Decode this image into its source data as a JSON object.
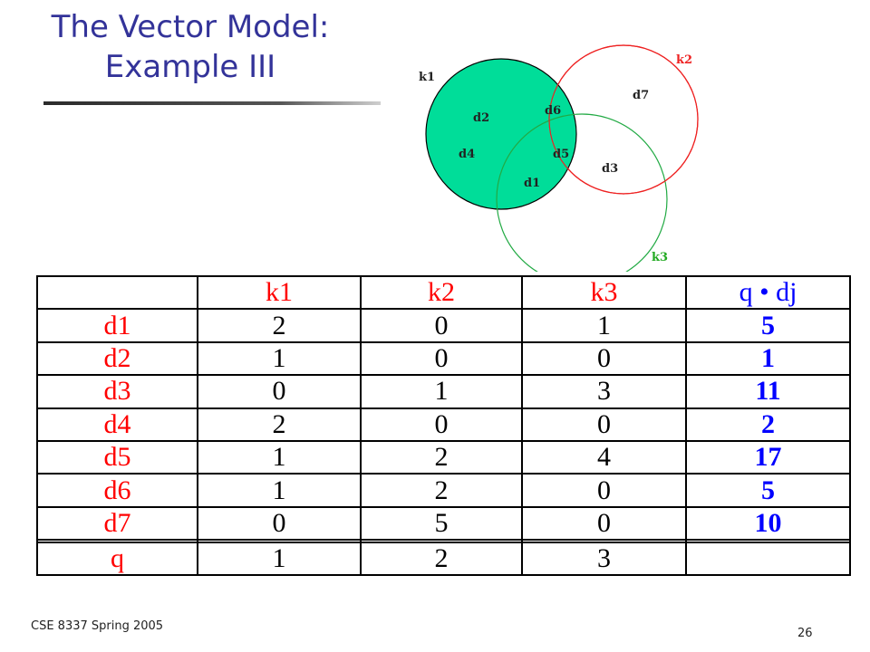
{
  "slide": {
    "title_line1": "The Vector Model:",
    "title_line2": "Example   III",
    "footer_left": "CSE 8337 Spring 2005",
    "page_number": "26"
  },
  "venn": {
    "labels": {
      "k1": "k1",
      "k2": "k2",
      "k3": "k3",
      "d1": "d1",
      "d2": "d2",
      "d3": "d3",
      "d4": "d4",
      "d5": "d5",
      "d6": "d6",
      "d7": "d7"
    },
    "colors": {
      "k1_fill": "#00dd99",
      "k2_stroke": "#ee2222",
      "k3_stroke": "#22aa44",
      "k2_label": "#ee2222",
      "k3_label": "#22aa22"
    }
  },
  "table": {
    "headers": [
      "",
      "k1",
      "k2",
      "k3",
      "q • dj"
    ],
    "rows": [
      {
        "label": "d1",
        "k1": "2",
        "k2": "0",
        "k3": "1",
        "score": "5"
      },
      {
        "label": "d2",
        "k1": "1",
        "k2": "0",
        "k3": "0",
        "score": "1"
      },
      {
        "label": "d3",
        "k1": "0",
        "k2": "1",
        "k3": "3",
        "score": "11"
      },
      {
        "label": "d4",
        "k1": "2",
        "k2": "0",
        "k3": "0",
        "score": "2"
      },
      {
        "label": "d5",
        "k1": "1",
        "k2": "2",
        "k3": "4",
        "score": "17"
      },
      {
        "label": "d6",
        "k1": "1",
        "k2": "2",
        "k3": "0",
        "score": "5"
      },
      {
        "label": "d7",
        "k1": "0",
        "k2": "5",
        "k3": "0",
        "score": "10"
      },
      {
        "label": "",
        "k1": "",
        "k2": "",
        "k3": "",
        "score": ""
      },
      {
        "label": "q",
        "k1": "1",
        "k2": "2",
        "k3": "3",
        "score": ""
      }
    ]
  }
}
